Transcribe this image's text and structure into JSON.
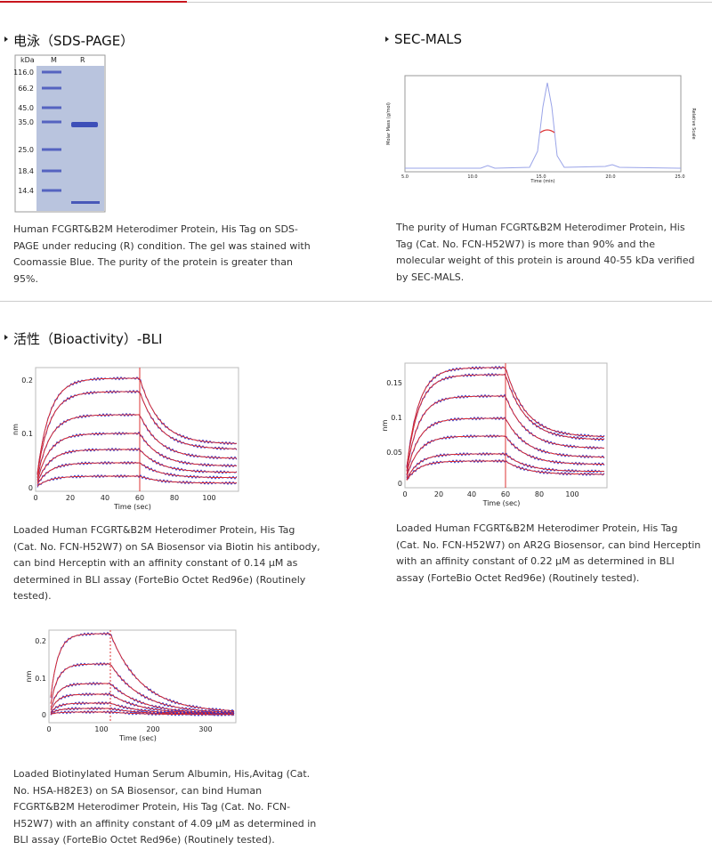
{
  "sections": [
    {
      "heading": "电泳（SDS-PAGE）"
    },
    {
      "heading": "SEC-MALS"
    },
    {
      "heading": "活性（Bioactivity）-BLI"
    }
  ],
  "gel": {
    "header": [
      "kDa",
      "M",
      "R"
    ],
    "markers": [
      "116.0",
      "66.2",
      "45.0",
      "35.0",
      "25.0",
      "18.4",
      "14.4"
    ]
  },
  "gel_caption": "Human FCGRT&B2M Heterodimer Protein, His Tag on SDS-PAGE under reducing (R) condition. The gel was stained with Coomassie Blue. The purity of the protein is greater than 95%.",
  "sec": {
    "y_label": "Molar Mass (g/mol)",
    "y2_label": "Relative Scale",
    "x_label": "Time (min)",
    "xticks": [
      "5.0",
      "10.0",
      "15.0",
      "20.0",
      "25.0"
    ]
  },
  "sec_caption": "The purity of Human FCGRT&B2M Heterodimer Protein, His Tag (Cat. No. FCN-H52W7) is more than 90% and the molecular weight of this protein is around 40-55 kDa verified by SEC-MALS.",
  "bli": [
    {
      "y_label": "nm",
      "x_label": "Time (sec)",
      "yticks": [
        "0",
        "0.1",
        "0.2"
      ],
      "xticks": [
        "0",
        "20",
        "40",
        "60",
        "80",
        "100"
      ],
      "caption": "Loaded Human FCGRT&B2M Heterodimer Protein, His Tag (Cat. No. FCN-H52W7) on SA Biosensor via Biotin his antibody, can bind Herceptin with an affinity constant of 0.14 μM as determined in BLI assay (ForteBio Octet Red96e) (Routinely tested)."
    },
    {
      "y_label": "nm",
      "x_label": "Time (sec)",
      "yticks": [
        "0",
        "0.05",
        "0.1",
        "0.15"
      ],
      "xticks": [
        "0",
        "20",
        "40",
        "60",
        "80",
        "100"
      ],
      "caption": "Loaded Human FCGRT&B2M Heterodimer Protein, His Tag (Cat. No. FCN-H52W7) on AR2G Biosensor, can bind Herceptin with an affinity constant of 0.22 μM as determined in BLI assay (ForteBio Octet Red96e) (Routinely tested)."
    },
    {
      "y_label": "nm",
      "x_label": "Time (sec)",
      "yticks": [
        "0",
        "0.1",
        "0.2"
      ],
      "xticks": [
        "0",
        "100",
        "200",
        "300"
      ],
      "caption": "Loaded Biotinylated Human Serum Albumin, His,Avitag (Cat. No. HSA-H82E3) on SA Biosensor, can bind Human FCGRT&B2M Heterodimer Protein, His Tag (Cat. No. FCN-H52W7) with an affinity constant of 4.09 μM as determined in BLI assay (ForteBio Octet Red96e) (Routinely tested)."
    }
  ]
}
